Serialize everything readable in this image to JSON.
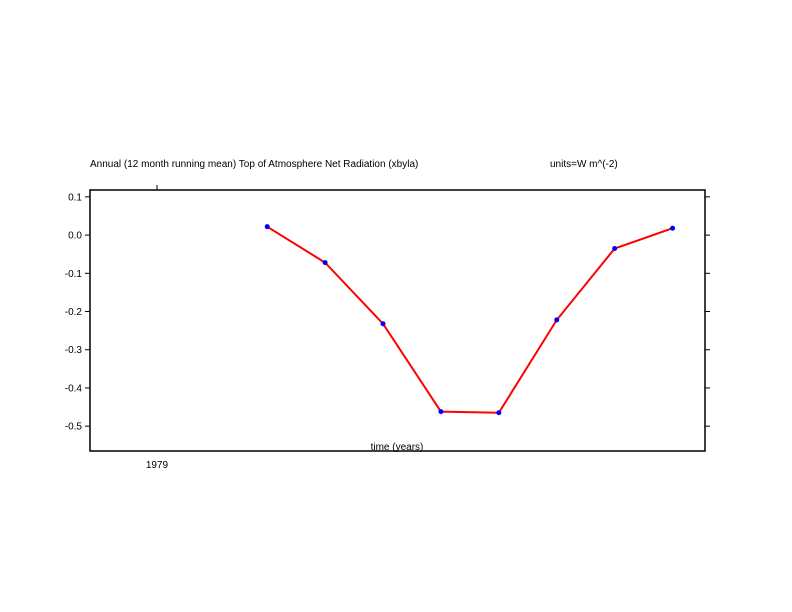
{
  "chart_data": {
    "type": "line",
    "title": "Annual (12 month running mean) Top of Atmosphere Net Radiation (xbyla)",
    "units_label": "units=W m^(-2)",
    "xlabel": "time (years)",
    "x_tick_labels": [
      "1979"
    ],
    "y_tick_labels": [
      "0.1",
      "0.0",
      "-0.1",
      "-0.2",
      "-0.3",
      "-0.4",
      "-0.5"
    ],
    "y_ticks": [
      0.1,
      0.0,
      -0.1,
      -0.2,
      -0.3,
      -0.4,
      -0.5
    ],
    "ylim": [
      -0.565,
      0.118
    ],
    "x_index_range": [
      -3.06,
      7.56
    ],
    "x_index": [
      0,
      1,
      2,
      3,
      4,
      5,
      6,
      7
    ],
    "series": [
      {
        "values": [
          0.022,
          -0.072,
          -0.232,
          -0.462,
          -0.465,
          -0.222,
          -0.035,
          0.018
        ],
        "line_color": "#ff0000",
        "marker_color": "#0000ff"
      }
    ],
    "grid": false
  }
}
